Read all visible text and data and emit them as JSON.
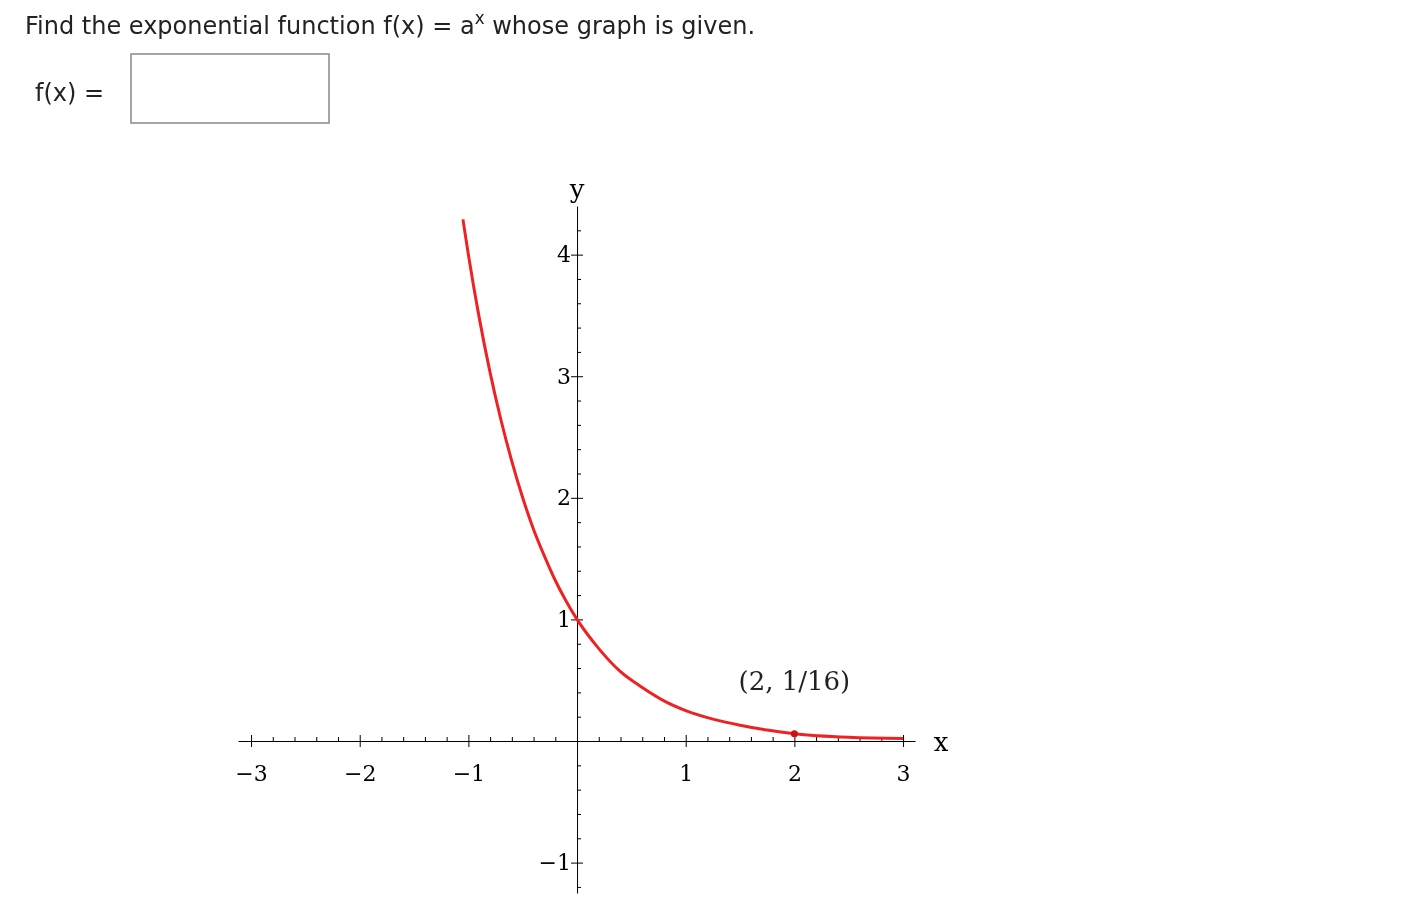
{
  "chart_data": {
    "type": "line",
    "title": "Find the exponential function f(x) = a$^{x}$ whose graph is given.",
    "xlabel": "x",
    "ylabel": "y",
    "annotations": [
      "f(x) =",
      {
        "text": "(2, 1/16)",
        "x": 2,
        "y": 0.06
      }
    ],
    "xlim": [
      -3.12,
      3.11
    ],
    "ylim": [
      -1.25,
      4.4
    ],
    "xticks": [
      {
        "value": -3,
        "label": "−3"
      },
      {
        "value": -2.8,
        "label": null
      },
      {
        "value": -2.6,
        "label": null
      },
      {
        "value": -2.4,
        "label": null
      },
      {
        "value": -2.2,
        "label": null
      },
      {
        "value": -2,
        "label": "−2"
      },
      {
        "value": -1.8,
        "label": null
      },
      {
        "value": -1.6,
        "label": null
      },
      {
        "value": -1.4,
        "label": null
      },
      {
        "value": -1.2,
        "label": null
      },
      {
        "value": -1,
        "label": "−1"
      },
      {
        "value": -0.8,
        "label": null
      },
      {
        "value": -0.6,
        "label": null
      },
      {
        "value": -0.4,
        "label": null
      },
      {
        "value": -0.2,
        "label": null
      },
      {
        "value": 0.2,
        "label": null
      },
      {
        "value": 0.4,
        "label": null
      },
      {
        "value": 0.6,
        "label": null
      },
      {
        "value": 0.8,
        "label": null
      },
      1,
      {
        "value": 1.2,
        "label": null
      },
      {
        "value": 1.4,
        "label": null
      },
      {
        "value": 1.6,
        "label": null
      },
      {
        "value": 1.8,
        "label": null
      },
      2,
      {
        "value": 2.2,
        "label": null
      },
      {
        "value": 2.4,
        "label": null
      },
      {
        "value": 2.6,
        "label": null
      },
      {
        "value": 2.8,
        "label": null
      },
      3
    ],
    "yticks": [
      {
        "value": -1.2,
        "label": null
      },
      {
        "value": -1,
        "label": "−1"
      },
      {
        "value": -0.8,
        "label": null
      },
      {
        "value": -0.6,
        "label": null
      },
      {
        "value": -0.4,
        "label": null
      },
      {
        "value": -0.2,
        "label": null
      },
      {
        "value": 0.2,
        "label": null
      },
      {
        "value": 0.4,
        "label": null
      },
      {
        "value": 0.6,
        "label": null
      },
      {
        "value": 0.8,
        "label": null
      },
      1,
      {
        "value": 1.2,
        "label": null
      },
      {
        "value": 1.4,
        "label": null
      },
      {
        "value": 1.6,
        "label": null
      },
      {
        "value": 1.8,
        "label": null
      },
      2,
      {
        "value": 2.2,
        "label": null
      },
      {
        "value": 2.4,
        "label": null
      },
      {
        "value": 2.6,
        "label": null
      },
      {
        "value": 2.8,
        "label": null
      },
      3,
      {
        "value": 3.2,
        "label": null
      },
      {
        "value": 3.4,
        "label": null
      },
      {
        "value": 3.6,
        "label": null
      },
      {
        "value": 3.8,
        "label": null
      },
      4,
      {
        "value": 4.2,
        "label": null
      }
    ],
    "grid": false,
    "series": [
      {
        "color": "#ee2222",
        "marker": "none",
        "line_style": "solid",
        "x": [
          -1.05,
          -1,
          -0.9,
          -0.8,
          -0.7,
          -0.6,
          -0.5,
          -0.4,
          -0.3,
          -0.2,
          -0.1,
          0,
          0.2,
          0.4,
          0.6,
          0.8,
          1,
          1.25,
          1.5,
          1.75,
          2,
          2.5,
          3
        ],
        "values": [
          4.29,
          4,
          3.48,
          3.03,
          2.64,
          2.3,
          2,
          1.74,
          1.52,
          1.32,
          1.15,
          1,
          0.76,
          0.57,
          0.44,
          0.33,
          0.25,
          0.18,
          0.13,
          0.09,
          0.06,
          0.03,
          0.02
        ]
      },
      {
        "type": "scatter",
        "color": "#cc1111",
        "marker": "circle",
        "x": [
          2
        ],
        "values": [
          0.06
        ]
      }
    ]
  }
}
